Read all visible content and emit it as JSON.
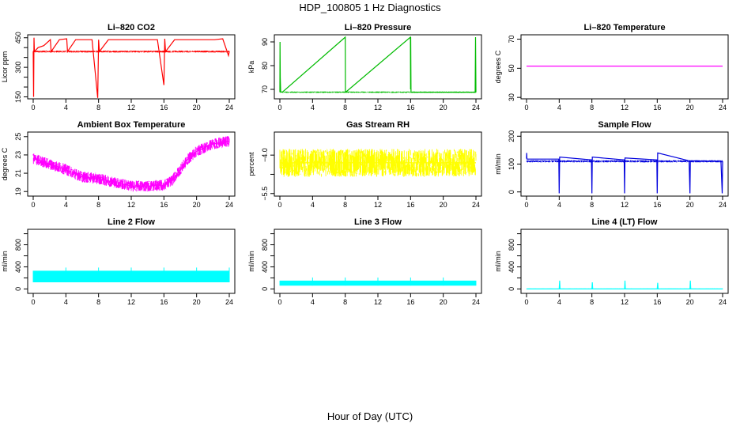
{
  "figure": {
    "title": "HDP_100805  1 Hz Diagnostics",
    "xlabel": "Hour of Day (UTC)"
  },
  "chart_data": [
    {
      "type": "line",
      "title": "Li–820 CO2",
      "ylabel": "Licor ppm",
      "color": "#ff0000",
      "xlim": [
        0,
        24
      ],
      "ylim": [
        140,
        465
      ],
      "xticks": [
        0,
        4,
        8,
        12,
        16,
        20,
        24
      ],
      "yticks": [
        150,
        200,
        250,
        300,
        350,
        400,
        450
      ],
      "ytick_labels": [
        "150",
        "",
        "",
        "300",
        "",
        "",
        "450"
      ],
      "baseline": 380,
      "noise": 5,
      "x": [
        0,
        0.05,
        0.1,
        0.15,
        0.6,
        1.3,
        2.1,
        2.2,
        3.2,
        4.1,
        4.2,
        5.2,
        6.3,
        7.2,
        7.9,
        8.0,
        8.1,
        9.2,
        10.2,
        11.3,
        12.2,
        13.2,
        14.3,
        15.2,
        16.0,
        16.1,
        16.2,
        17.3,
        18.2,
        19.2,
        20.3,
        21.2,
        22.2,
        23.2,
        23.9,
        24.0
      ],
      "y": [
        380,
        150,
        450,
        380,
        400,
        410,
        440,
        380,
        440,
        445,
        380,
        440,
        440,
        440,
        145,
        440,
        380,
        440,
        440,
        440,
        440,
        440,
        440,
        440,
        210,
        445,
        380,
        440,
        440,
        440,
        440,
        440,
        440,
        445,
        360,
        380
      ]
    },
    {
      "type": "line",
      "title": "Li–820 Pressure",
      "ylabel": "kPa",
      "color": "#00bb00",
      "xlim": [
        0,
        24
      ],
      "ylim": [
        66,
        93
      ],
      "xticks": [
        0,
        4,
        8,
        12,
        16,
        20,
        24
      ],
      "yticks": [
        70,
        80,
        90
      ],
      "ytick_labels": [
        "70",
        "80",
        "90"
      ],
      "baseline": 68.8,
      "noise": 0.3,
      "x": [
        0,
        0.02,
        0.05,
        0.1,
        0.3,
        8.0,
        8.02,
        8.05,
        15.98,
        16.0,
        16.02,
        16.05,
        23.9,
        23.95,
        24.0
      ],
      "y": [
        68.8,
        90,
        75,
        69,
        68.8,
        92,
        68.8,
        68.8,
        92,
        70,
        92,
        68.8,
        68.8,
        92,
        68.8
      ]
    },
    {
      "type": "line",
      "title": "Li–820 Temperature",
      "ylabel": "degrees C",
      "color": "#ff00ff",
      "xlim": [
        0,
        24
      ],
      "ylim": [
        29,
        73
      ],
      "xticks": [
        0,
        4,
        8,
        12,
        16,
        20,
        24
      ],
      "yticks": [
        30,
        50,
        70
      ],
      "ytick_labels": [
        "30",
        "50",
        "70"
      ],
      "baseline": 51.5,
      "noise": 0,
      "x": [
        0,
        24
      ],
      "y": [
        51.5,
        51.5
      ]
    },
    {
      "type": "line",
      "title": "Ambient Box Temperature",
      "ylabel": "degrees C",
      "color": "#ff00ff",
      "xlim": [
        0,
        24
      ],
      "ylim": [
        18.5,
        25.5
      ],
      "xticks": [
        0,
        4,
        8,
        12,
        16,
        20,
        24
      ],
      "yticks": [
        19,
        21,
        23,
        25
      ],
      "ytick_labels": [
        "19",
        "21",
        "23",
        "25"
      ],
      "baseline": null,
      "noise": 0.6,
      "x": [
        0,
        2,
        4,
        6,
        8,
        10,
        12,
        14,
        16,
        17,
        18,
        19,
        20,
        22,
        24
      ],
      "y": [
        22.6,
        22.0,
        21.4,
        20.6,
        20.4,
        20.0,
        19.6,
        19.6,
        19.7,
        20.2,
        21.4,
        22.6,
        23.4,
        24.2,
        24.5
      ]
    },
    {
      "type": "line",
      "title": "Gas Stream RH",
      "ylabel": "percent",
      "color": "#ffff00",
      "xlim": [
        0,
        24
      ],
      "ylim": [
        -5.6,
        -3.1
      ],
      "xticks": [
        0,
        4,
        8,
        12,
        16,
        20,
        24
      ],
      "yticks": [
        -5.5,
        -4.75,
        -4.0
      ],
      "ytick_labels": [
        "−5.5",
        "",
        "−4.0"
      ],
      "baseline": null,
      "noise": 0.55,
      "x": [
        0,
        6,
        12,
        18,
        24
      ],
      "y": [
        -4.3,
        -4.3,
        -4.3,
        -4.3,
        -4.3
      ]
    },
    {
      "type": "line",
      "title": "Sample Flow",
      "ylabel": "ml/min",
      "color": "#0000dd",
      "xlim": [
        0,
        24
      ],
      "ylim": [
        -15,
        215
      ],
      "xticks": [
        0,
        4,
        8,
        12,
        16,
        20,
        24
      ],
      "yticks": [
        0,
        100,
        200
      ],
      "ytick_labels": [
        "0",
        "100",
        "200"
      ],
      "baseline": 110,
      "noise": 4,
      "x": [
        0,
        0.02,
        0.05,
        3.95,
        4.0,
        4.05,
        7.95,
        8.0,
        8.05,
        11.95,
        12.0,
        12.05,
        15.95,
        16.0,
        16.05,
        19.9,
        20.0,
        20.05,
        23.8,
        23.95,
        24.0
      ],
      "y": [
        120,
        140,
        118,
        118,
        -5,
        125,
        115,
        -5,
        125,
        115,
        -5,
        122,
        115,
        -5,
        140,
        112,
        -5,
        112,
        110,
        -5,
        110
      ]
    },
    {
      "type": "line",
      "title": "Line 2 Flow",
      "ylabel": "ml/min",
      "color": "#00ffff",
      "xlim": [
        0,
        24
      ],
      "ylim": [
        -80,
        1080
      ],
      "xticks": [
        0,
        4,
        8,
        12,
        16,
        20,
        24
      ],
      "yticks": [
        0,
        200,
        400,
        600,
        800,
        1000
      ],
      "ytick_labels": [
        "0",
        "",
        "400",
        "",
        "800",
        ""
      ],
      "baseline": null,
      "band": [
        120,
        330
      ],
      "band_gaps": [
        4,
        8,
        12,
        16,
        20,
        24
      ],
      "x": [
        0,
        24
      ],
      "y": [
        220,
        220
      ]
    },
    {
      "type": "line",
      "title": "Line 3 Flow",
      "ylabel": "ml/min",
      "color": "#00ffff",
      "xlim": [
        0,
        24
      ],
      "ylim": [
        -80,
        1080
      ],
      "xticks": [
        0,
        4,
        8,
        12,
        16,
        20,
        24
      ],
      "yticks": [
        0,
        200,
        400,
        600,
        800,
        1000
      ],
      "ytick_labels": [
        "0",
        "",
        "400",
        "",
        "800",
        ""
      ],
      "baseline": null,
      "band": [
        60,
        150
      ],
      "band_gaps": [
        4,
        8,
        12,
        16,
        20
      ],
      "x": [
        0,
        24
      ],
      "y": [
        110,
        110
      ]
    },
    {
      "type": "line",
      "title": "Line 4 (LT) Flow",
      "ylabel": "ml/min",
      "color": "#00ffff",
      "xlim": [
        0,
        24
      ],
      "ylim": [
        -80,
        1080
      ],
      "xticks": [
        0,
        4,
        8,
        12,
        16,
        20,
        24
      ],
      "yticks": [
        0,
        200,
        400,
        600,
        800,
        1000
      ],
      "ytick_labels": [
        "0",
        "",
        "400",
        "",
        "800",
        ""
      ],
      "baseline": 0,
      "noise": 8,
      "x": [
        0,
        4.0,
        4.05,
        4.1,
        8.0,
        8.05,
        8.1,
        12.0,
        12.05,
        12.1,
        16.0,
        16.05,
        16.1,
        20.0,
        20.05,
        20.1,
        24.0
      ],
      "y": [
        0,
        0,
        150,
        0,
        0,
        120,
        0,
        0,
        150,
        0,
        0,
        110,
        0,
        0,
        150,
        0,
        0
      ]
    }
  ]
}
